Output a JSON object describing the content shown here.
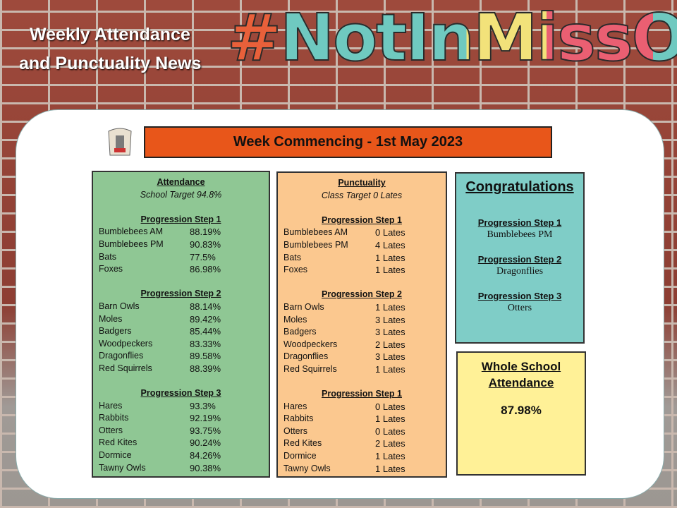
{
  "header": {
    "title_line1": "Weekly Attendance",
    "title_line2": "and Punctuality News",
    "hashtag": "#NotInMissOut"
  },
  "week": "Week Commencing - 1st May 2023",
  "attendance": {
    "heading": "Attendance",
    "target": "School Target 94.8%",
    "groups": [
      {
        "title": "Progression Step 1",
        "rows": [
          [
            "Bumblebees AM",
            "88.19%"
          ],
          [
            "Bumblebees PM",
            "90.83%"
          ],
          [
            "Bats",
            "77.5%"
          ],
          [
            "Foxes",
            "86.98%"
          ]
        ]
      },
      {
        "title": "Progression Step 2",
        "rows": [
          [
            "Barn Owls",
            "88.14%"
          ],
          [
            "Moles",
            "89.42%"
          ],
          [
            "Badgers",
            "85.44%"
          ],
          [
            "Woodpeckers",
            "83.33%"
          ],
          [
            "Dragonflies",
            "89.58%"
          ],
          [
            "Red Squirrels",
            "88.39%"
          ]
        ]
      },
      {
        "title": "Progression Step 3",
        "rows": [
          [
            "Hares",
            "93.3%"
          ],
          [
            "Rabbits",
            "92.19%"
          ],
          [
            "Otters",
            "93.75%"
          ],
          [
            "Red Kites",
            "90.24%"
          ],
          [
            "Dormice",
            "84.26%"
          ],
          [
            "Tawny Owls",
            "90.38%"
          ]
        ]
      }
    ]
  },
  "punctuality": {
    "heading": "Punctuality",
    "target": "Class Target 0 Lates",
    "groups": [
      {
        "title": "Progression Step 1",
        "rows": [
          [
            "Bumblebees AM",
            "0 Lates"
          ],
          [
            "Bumblebees PM",
            "4 Lates"
          ],
          [
            "Bats",
            "1 Lates"
          ],
          [
            "Foxes",
            "1 Lates"
          ]
        ]
      },
      {
        "title": "Progression Step 2",
        "rows": [
          [
            "Barn Owls",
            "1 Lates"
          ],
          [
            "Moles",
            "3 Lates"
          ],
          [
            "Badgers",
            "3 Lates"
          ],
          [
            "Woodpeckers",
            "2 Lates"
          ],
          [
            "Dragonflies",
            "3 Lates"
          ],
          [
            "Red Squirrels",
            "1 Lates"
          ]
        ]
      },
      {
        "title": "Progression Step 1",
        "rows": [
          [
            "Hares",
            "0 Lates"
          ],
          [
            "Rabbits",
            "1 Lates"
          ],
          [
            "Otters",
            "0 Lates"
          ],
          [
            "Red Kites",
            "2 Lates"
          ],
          [
            "Dormice",
            "1 Lates"
          ],
          [
            "Tawny Owls",
            "1 Lates"
          ]
        ]
      }
    ]
  },
  "congratulations": {
    "heading": "Congratulations",
    "items": [
      {
        "step": "Progression Step 1",
        "winner": "Bumblebees PM"
      },
      {
        "step": "Progression Step 2",
        "winner": "Dragonflies"
      },
      {
        "step": "Progression Step 3",
        "winner": "Otters"
      }
    ]
  },
  "whole_school": {
    "heading": "Whole School Attendance",
    "value": "87.98%"
  }
}
